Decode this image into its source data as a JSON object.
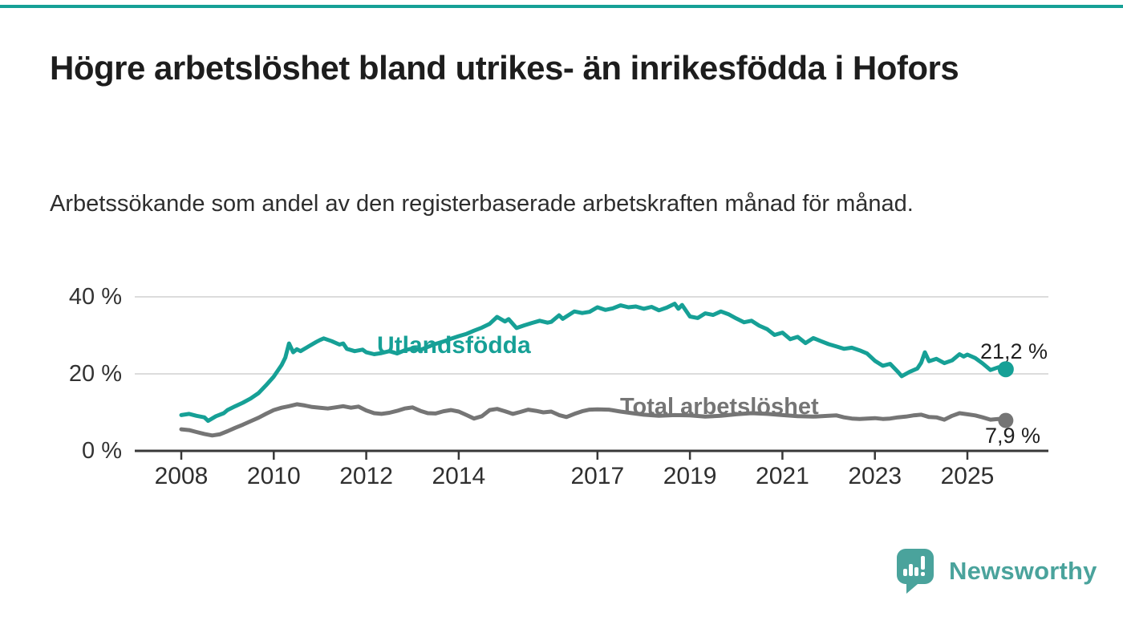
{
  "accent_color": "#16A096",
  "header": {
    "title": "Högre arbetslöshet bland utrikes- än inrikesfödda i Hofors",
    "subtitle": "Arbetssökande som andel av den registerbaserade arbetskraften månad för månad."
  },
  "footer": {
    "brand": "Newsworthy",
    "logo_color": "#4AA39C"
  },
  "chart_data": {
    "type": "line",
    "title": "Högre arbetslöshet bland utrikes- än inrikesfödda i Hofors",
    "subtitle": "Arbetssökande som andel av den registerbaserade arbetskraften månad för månad.",
    "unit": "%",
    "grid": true,
    "legend_position": "inline-labels",
    "ylim": [
      0,
      42
    ],
    "xlim_years": [
      2007,
      2026.8
    ],
    "y_axis": {
      "ticks": [
        {
          "label": "40 %",
          "value": 40
        },
        {
          "label": "20 %",
          "value": 20
        },
        {
          "label": "0 %",
          "value": 0
        }
      ]
    },
    "x_axis": {
      "ticks": [
        {
          "label": "2008",
          "year": 2008
        },
        {
          "label": "2010",
          "year": 2010
        },
        {
          "label": "2012",
          "year": 2012
        },
        {
          "label": "2014",
          "year": 2014
        },
        {
          "label": "2017",
          "year": 2017
        },
        {
          "label": "2019",
          "year": 2019
        },
        {
          "label": "2021",
          "year": 2021
        },
        {
          "label": "2023",
          "year": 2023
        },
        {
          "label": "2025",
          "year": 2025
        }
      ]
    },
    "series": [
      {
        "name": "Utlandsfödda",
        "color": "#16A096",
        "end_label": "21,2 %",
        "end_value": 21.2,
        "points": [
          [
            2008.0,
            9.3
          ],
          [
            2008.17,
            9.6
          ],
          [
            2008.33,
            9.1
          ],
          [
            2008.5,
            8.7
          ],
          [
            2008.58,
            7.8
          ],
          [
            2008.75,
            9.0
          ],
          [
            2008.92,
            9.8
          ],
          [
            2009.0,
            10.6
          ],
          [
            2009.17,
            11.6
          ],
          [
            2009.33,
            12.5
          ],
          [
            2009.5,
            13.6
          ],
          [
            2009.67,
            15.0
          ],
          [
            2009.83,
            17.0
          ],
          [
            2010.0,
            19.3
          ],
          [
            2010.17,
            22.3
          ],
          [
            2010.25,
            24.2
          ],
          [
            2010.33,
            27.9
          ],
          [
            2010.42,
            25.6
          ],
          [
            2010.5,
            26.4
          ],
          [
            2010.58,
            25.9
          ],
          [
            2010.75,
            27.1
          ],
          [
            2010.92,
            28.3
          ],
          [
            2011.0,
            28.8
          ],
          [
            2011.08,
            29.2
          ],
          [
            2011.25,
            28.5
          ],
          [
            2011.42,
            27.6
          ],
          [
            2011.5,
            27.9
          ],
          [
            2011.58,
            26.5
          ],
          [
            2011.75,
            25.9
          ],
          [
            2011.92,
            26.3
          ],
          [
            2012.0,
            25.6
          ],
          [
            2012.17,
            25.1
          ],
          [
            2012.33,
            25.4
          ],
          [
            2012.5,
            25.9
          ],
          [
            2012.67,
            25.3
          ],
          [
            2012.83,
            26.1
          ],
          [
            2013.0,
            26.6
          ],
          [
            2013.17,
            26.2
          ],
          [
            2013.33,
            27.0
          ],
          [
            2013.5,
            27.8
          ],
          [
            2013.67,
            28.4
          ],
          [
            2013.83,
            29.1
          ],
          [
            2014.0,
            29.8
          ],
          [
            2014.17,
            30.4
          ],
          [
            2014.33,
            31.2
          ],
          [
            2014.5,
            32.0
          ],
          [
            2014.67,
            33.0
          ],
          [
            2014.83,
            34.8
          ],
          [
            2015.0,
            33.6
          ],
          [
            2015.08,
            34.2
          ],
          [
            2015.25,
            31.9
          ],
          [
            2015.42,
            32.6
          ],
          [
            2015.58,
            33.2
          ],
          [
            2015.75,
            33.8
          ],
          [
            2015.92,
            33.3
          ],
          [
            2016.0,
            33.5
          ],
          [
            2016.17,
            35.2
          ],
          [
            2016.25,
            34.3
          ],
          [
            2016.5,
            36.2
          ],
          [
            2016.67,
            35.8
          ],
          [
            2016.83,
            36.1
          ],
          [
            2017.0,
            37.3
          ],
          [
            2017.17,
            36.6
          ],
          [
            2017.33,
            37.0
          ],
          [
            2017.5,
            37.8
          ],
          [
            2017.67,
            37.3
          ],
          [
            2017.83,
            37.5
          ],
          [
            2018.0,
            36.9
          ],
          [
            2018.17,
            37.4
          ],
          [
            2018.33,
            36.5
          ],
          [
            2018.5,
            37.2
          ],
          [
            2018.67,
            38.2
          ],
          [
            2018.75,
            36.9
          ],
          [
            2018.83,
            37.9
          ],
          [
            2019.0,
            34.9
          ],
          [
            2019.17,
            34.5
          ],
          [
            2019.33,
            35.7
          ],
          [
            2019.5,
            35.3
          ],
          [
            2019.67,
            36.2
          ],
          [
            2019.83,
            35.5
          ],
          [
            2020.0,
            34.4
          ],
          [
            2020.17,
            33.4
          ],
          [
            2020.33,
            33.8
          ],
          [
            2020.5,
            32.5
          ],
          [
            2020.67,
            31.6
          ],
          [
            2020.83,
            30.1
          ],
          [
            2021.0,
            30.7
          ],
          [
            2021.17,
            29.0
          ],
          [
            2021.33,
            29.6
          ],
          [
            2021.5,
            28.0
          ],
          [
            2021.67,
            29.3
          ],
          [
            2021.83,
            28.5
          ],
          [
            2022.0,
            27.7
          ],
          [
            2022.17,
            27.1
          ],
          [
            2022.33,
            26.5
          ],
          [
            2022.5,
            26.8
          ],
          [
            2022.67,
            26.1
          ],
          [
            2022.83,
            25.3
          ],
          [
            2023.0,
            23.4
          ],
          [
            2023.17,
            22.1
          ],
          [
            2023.33,
            22.6
          ],
          [
            2023.5,
            20.5
          ],
          [
            2023.58,
            19.4
          ],
          [
            2023.75,
            20.5
          ],
          [
            2023.92,
            21.4
          ],
          [
            2024.0,
            22.9
          ],
          [
            2024.08,
            25.6
          ],
          [
            2024.17,
            23.3
          ],
          [
            2024.33,
            23.9
          ],
          [
            2024.5,
            22.8
          ],
          [
            2024.67,
            23.5
          ],
          [
            2024.83,
            25.1
          ],
          [
            2024.92,
            24.5
          ],
          [
            2025.0,
            25.0
          ],
          [
            2025.17,
            24.1
          ],
          [
            2025.33,
            22.7
          ],
          [
            2025.5,
            21.0
          ],
          [
            2025.67,
            21.7
          ],
          [
            2025.83,
            21.2
          ]
        ]
      },
      {
        "name": "Total arbetslöshet",
        "color": "#757575",
        "end_label": "7,9 %",
        "end_value": 7.9,
        "points": [
          [
            2008.0,
            5.6
          ],
          [
            2008.17,
            5.4
          ],
          [
            2008.33,
            4.9
          ],
          [
            2008.5,
            4.4
          ],
          [
            2008.67,
            4.0
          ],
          [
            2008.83,
            4.3
          ],
          [
            2009.0,
            5.1
          ],
          [
            2009.17,
            6.0
          ],
          [
            2009.33,
            6.8
          ],
          [
            2009.5,
            7.7
          ],
          [
            2009.67,
            8.6
          ],
          [
            2009.83,
            9.6
          ],
          [
            2010.0,
            10.6
          ],
          [
            2010.17,
            11.2
          ],
          [
            2010.33,
            11.6
          ],
          [
            2010.5,
            12.1
          ],
          [
            2010.67,
            11.8
          ],
          [
            2010.83,
            11.4
          ],
          [
            2011.0,
            11.2
          ],
          [
            2011.17,
            11.0
          ],
          [
            2011.33,
            11.3
          ],
          [
            2011.5,
            11.6
          ],
          [
            2011.67,
            11.2
          ],
          [
            2011.83,
            11.5
          ],
          [
            2012.0,
            10.5
          ],
          [
            2012.17,
            9.8
          ],
          [
            2012.33,
            9.6
          ],
          [
            2012.5,
            9.9
          ],
          [
            2012.67,
            10.4
          ],
          [
            2012.83,
            11.0
          ],
          [
            2013.0,
            11.3
          ],
          [
            2013.17,
            10.4
          ],
          [
            2013.33,
            9.8
          ],
          [
            2013.5,
            9.7
          ],
          [
            2013.67,
            10.3
          ],
          [
            2013.83,
            10.6
          ],
          [
            2014.0,
            10.2
          ],
          [
            2014.17,
            9.3
          ],
          [
            2014.33,
            8.4
          ],
          [
            2014.5,
            9.0
          ],
          [
            2014.67,
            10.6
          ],
          [
            2014.83,
            10.9
          ],
          [
            2015.0,
            10.3
          ],
          [
            2015.17,
            9.6
          ],
          [
            2015.33,
            10.1
          ],
          [
            2015.5,
            10.7
          ],
          [
            2015.67,
            10.4
          ],
          [
            2015.83,
            10.0
          ],
          [
            2016.0,
            10.2
          ],
          [
            2016.17,
            9.3
          ],
          [
            2016.33,
            8.8
          ],
          [
            2016.5,
            9.6
          ],
          [
            2016.67,
            10.3
          ],
          [
            2016.83,
            10.7
          ],
          [
            2017.0,
            10.8
          ],
          [
            2017.25,
            10.7
          ],
          [
            2017.5,
            10.2
          ],
          [
            2017.75,
            9.8
          ],
          [
            2018.0,
            9.4
          ],
          [
            2018.33,
            9.1
          ],
          [
            2018.67,
            9.3
          ],
          [
            2019.0,
            9.2
          ],
          [
            2019.33,
            8.9
          ],
          [
            2019.67,
            9.1
          ],
          [
            2020.0,
            9.5
          ],
          [
            2020.33,
            9.8
          ],
          [
            2020.67,
            9.6
          ],
          [
            2021.0,
            9.3
          ],
          [
            2021.33,
            9.0
          ],
          [
            2021.67,
            8.9
          ],
          [
            2022.0,
            9.1
          ],
          [
            2022.17,
            9.2
          ],
          [
            2022.33,
            8.7
          ],
          [
            2022.5,
            8.4
          ],
          [
            2022.67,
            8.3
          ],
          [
            2022.83,
            8.4
          ],
          [
            2023.0,
            8.5
          ],
          [
            2023.17,
            8.3
          ],
          [
            2023.33,
            8.4
          ],
          [
            2023.5,
            8.7
          ],
          [
            2023.67,
            8.9
          ],
          [
            2023.83,
            9.2
          ],
          [
            2024.0,
            9.4
          ],
          [
            2024.17,
            8.8
          ],
          [
            2024.33,
            8.7
          ],
          [
            2024.5,
            8.1
          ],
          [
            2024.67,
            9.1
          ],
          [
            2024.83,
            9.8
          ],
          [
            2025.0,
            9.5
          ],
          [
            2025.17,
            9.2
          ],
          [
            2025.33,
            8.7
          ],
          [
            2025.5,
            8.1
          ],
          [
            2025.67,
            8.3
          ],
          [
            2025.83,
            7.9
          ]
        ]
      }
    ]
  }
}
